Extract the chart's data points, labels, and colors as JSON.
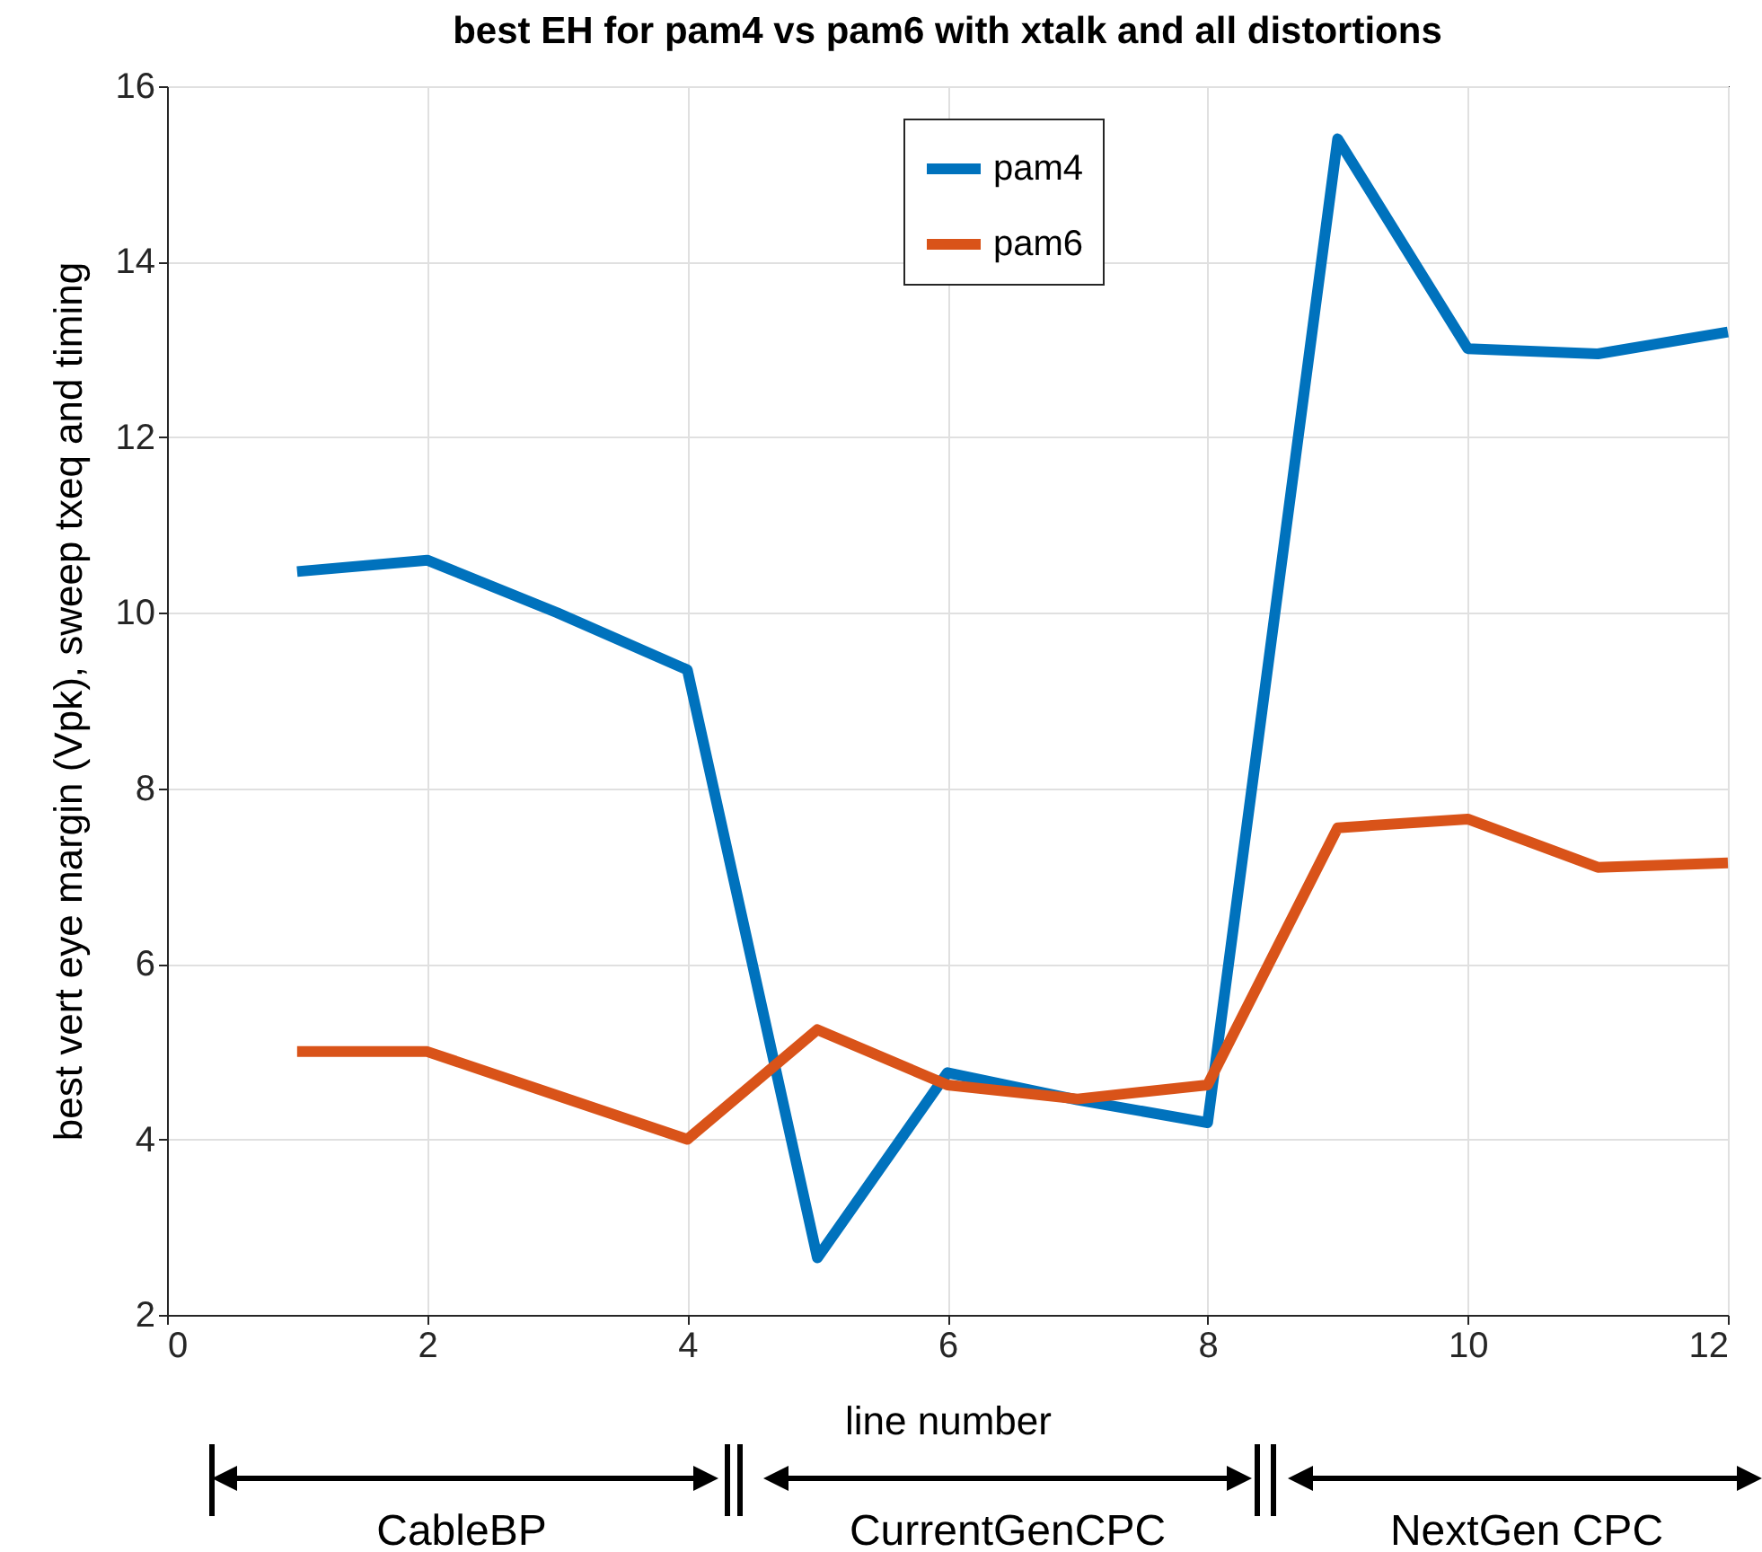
{
  "chart_data": {
    "type": "line",
    "title": "best EH for pam4 vs pam6 with xtalk and all distortions",
    "xlabel": "line number",
    "ylabel": "best vert eye margin (Vpk), sweep txeq and timing",
    "x": [
      1,
      2,
      3,
      4,
      5,
      6,
      7,
      8,
      9,
      10,
      11,
      12
    ],
    "series": [
      {
        "name": "pam4",
        "color": "#0072bd",
        "values": [
          10.47,
          10.6,
          10.0,
          9.35,
          2.65,
          4.76,
          4.45,
          4.19,
          15.4,
          13.01,
          12.95,
          13.2
        ]
      },
      {
        "name": "pam6",
        "color": "#d95319",
        "values": [
          5.0,
          5.0,
          4.5,
          4.0,
          5.25,
          4.62,
          4.46,
          4.62,
          7.55,
          7.65,
          7.1,
          7.15
        ]
      }
    ],
    "xlim": [
      0,
      12
    ],
    "xticks": [
      0,
      2,
      4,
      6,
      8,
      10,
      12
    ],
    "ylim": [
      2,
      16
    ],
    "yticks": [
      2,
      4,
      6,
      8,
      10,
      12,
      14,
      16
    ],
    "grid": true,
    "legend": "top",
    "marker": "none",
    "line_style": "solid",
    "annotations": [
      "CableBP",
      "CurrentGenCPC",
      "NextGen CPC"
    ]
  }
}
